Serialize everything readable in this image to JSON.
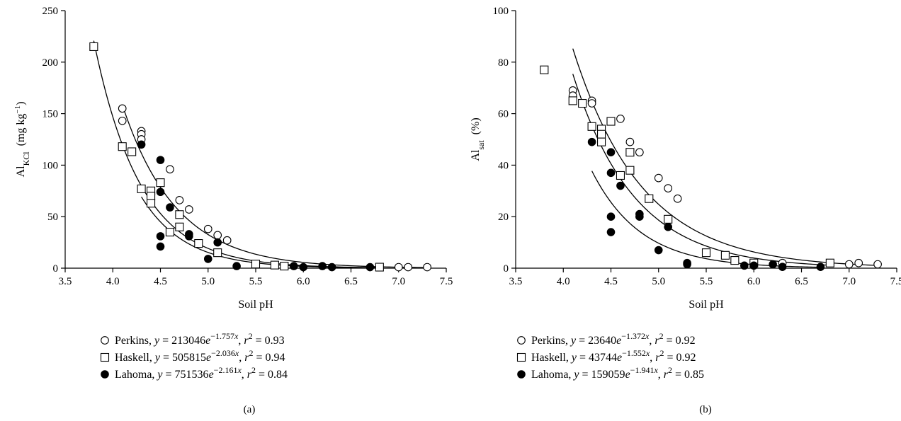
{
  "chart_data": [
    {
      "type": "scatter",
      "panel_label": "(a)",
      "xlabel": "Soil pH",
      "ylabel": {
        "main": "Al",
        "sub": "KCl",
        "units_pre": "(mg kg",
        "units_sup": "−1",
        "units_post": ")"
      },
      "xlim": [
        3.5,
        7.5
      ],
      "ylim": [
        0,
        250
      ],
      "xticks": [
        "3.5",
        "4.0",
        "4.5",
        "5.0",
        "5.5",
        "6.0",
        "6.5",
        "7.0",
        "7.5"
      ],
      "yticks": [
        "0",
        "50",
        "100",
        "150",
        "200",
        "250"
      ],
      "series": [
        {
          "name": "Perkins",
          "marker": "open-circle",
          "fit": {
            "a": 213046,
            "b": -1.757,
            "x_range": [
              4.1,
              7.3
            ]
          },
          "legend": {
            "eq_coef": "213046",
            "eq_exp": "−1.757",
            "r2": "0.93"
          },
          "x": [
            4.1,
            4.1,
            4.3,
            4.3,
            4.3,
            4.6,
            4.7,
            4.8,
            5.0,
            5.1,
            5.2,
            5.7,
            7.0,
            7.1,
            7.3
          ],
          "y": [
            155,
            143,
            133,
            130,
            125,
            96,
            66,
            57,
            38,
            32,
            27,
            3,
            1,
            1,
            1
          ]
        },
        {
          "name": "Haskell",
          "marker": "open-square",
          "fit": {
            "a": 505815,
            "b": -2.036,
            "x_range": [
              3.8,
              6.8
            ]
          },
          "legend": {
            "eq_coef": "505815",
            "eq_exp": "−2.036",
            "r2": "0.94"
          },
          "x": [
            3.8,
            4.1,
            4.2,
            4.3,
            4.4,
            4.4,
            4.4,
            4.5,
            4.6,
            4.7,
            4.7,
            4.9,
            5.1,
            5.5,
            5.7,
            5.8,
            6.8
          ],
          "y": [
            215,
            118,
            113,
            77,
            75,
            70,
            63,
            83,
            35,
            40,
            52,
            24,
            15,
            4,
            3,
            2,
            1
          ]
        },
        {
          "name": "Lahoma",
          "marker": "filled-circle",
          "fit": {
            "a": 751536,
            "b": -2.161,
            "x_range": [
              4.3,
              6.7
            ]
          },
          "legend": {
            "eq_coef": "751536",
            "eq_exp": "−2.161",
            "r2": "0.84"
          },
          "x": [
            4.3,
            4.5,
            4.5,
            4.5,
            4.5,
            4.6,
            4.8,
            4.8,
            5.0,
            5.1,
            5.3,
            5.9,
            6.0,
            6.2,
            6.3,
            6.7
          ],
          "y": [
            120,
            105,
            74,
            31,
            21,
            59,
            33,
            31,
            9,
            25,
            2,
            2,
            1,
            2,
            1,
            1
          ]
        }
      ]
    },
    {
      "type": "scatter",
      "panel_label": "(b)",
      "xlabel": "Soil pH",
      "ylabel": {
        "main": "Al",
        "sub": "sat",
        "units_pre": "(%)",
        "units_sup": "",
        "units_post": ""
      },
      "xlim": [
        3.5,
        7.5
      ],
      "ylim": [
        0,
        100
      ],
      "xticks": [
        "3.5",
        "4.0",
        "4.5",
        "5.0",
        "5.5",
        "6.0",
        "6.5",
        "7.0",
        "7.5"
      ],
      "yticks": [
        "0",
        "20",
        "40",
        "60",
        "80",
        "100"
      ],
      "series": [
        {
          "name": "Perkins",
          "marker": "open-circle",
          "fit": {
            "a": 23640,
            "b": -1.372,
            "x_range": [
              4.1,
              7.3
            ]
          },
          "legend": {
            "eq_coef": "23640",
            "eq_exp": "−1.372",
            "r2": "0.92"
          },
          "x": [
            4.1,
            4.1,
            4.3,
            4.3,
            4.6,
            4.7,
            4.8,
            5.0,
            5.1,
            5.2,
            5.7,
            5.8,
            6.3,
            7.0,
            7.1,
            7.3
          ],
          "y": [
            69,
            67,
            65,
            64,
            58,
            49,
            45,
            35,
            31,
            27,
            5,
            3,
            2,
            1.5,
            2,
            1.5
          ]
        },
        {
          "name": "Haskell",
          "marker": "open-square",
          "fit": {
            "a": 43744,
            "b": -1.552,
            "x_range": [
              4.1,
              6.8
            ]
          },
          "legend": {
            "eq_coef": "43744",
            "eq_exp": "−1.552",
            "r2": "0.92"
          },
          "x": [
            3.8,
            4.1,
            4.2,
            4.3,
            4.4,
            4.4,
            4.4,
            4.5,
            4.6,
            4.7,
            4.7,
            4.9,
            5.1,
            5.5,
            5.7,
            5.8,
            6.0,
            6.8
          ],
          "y": [
            77,
            65,
            64,
            55,
            54,
            52,
            49,
            57,
            36,
            45,
            38,
            27,
            19,
            6,
            5,
            3,
            2,
            2
          ]
        },
        {
          "name": "Lahoma",
          "marker": "filled-circle",
          "fit": {
            "a": 159059,
            "b": -1.941,
            "x_range": [
              4.3,
              6.7
            ]
          },
          "legend": {
            "eq_coef": "159059",
            "eq_exp": "−1.941",
            "r2": "0.85"
          },
          "x": [
            4.3,
            4.5,
            4.5,
            4.5,
            4.5,
            4.6,
            4.8,
            4.8,
            5.0,
            5.1,
            5.3,
            5.3,
            5.9,
            6.0,
            6.2,
            6.3,
            6.7
          ],
          "y": [
            49,
            45,
            37,
            20,
            14,
            32,
            21,
            20,
            7,
            16,
            2,
            1.5,
            1,
            1,
            1.5,
            0.5,
            0.5
          ]
        }
      ]
    }
  ],
  "legend_labels": {
    "y_var": "y",
    "eq_mid": "e",
    "x_var": "x",
    "r_var": "r",
    "r_sup": "2"
  }
}
